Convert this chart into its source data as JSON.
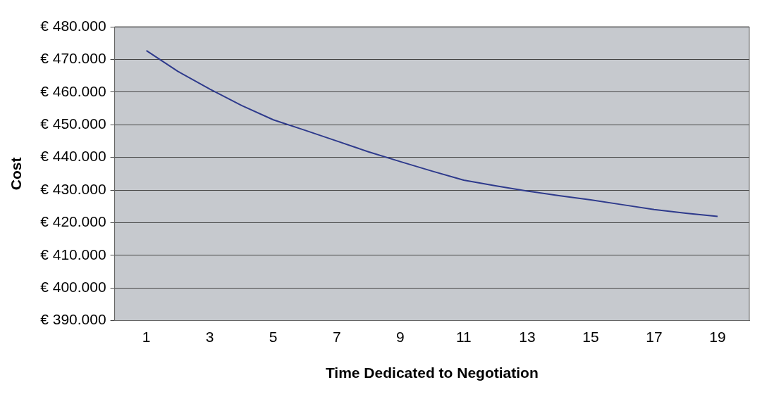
{
  "chart_data": {
    "type": "line",
    "xlabel": "Time Dedicated to Negotiation",
    "ylabel": "Cost",
    "x": [
      1,
      2,
      3,
      4,
      5,
      6,
      7,
      8,
      9,
      10,
      11,
      12,
      13,
      14,
      15,
      16,
      17,
      18,
      19
    ],
    "series": [
      {
        "color": "#2e3a8c",
        "values": [
          472700,
          466300,
          460900,
          455900,
          451500,
          448300,
          445000,
          441700,
          438700,
          435800,
          433000,
          431300,
          429700,
          428300,
          427000,
          425500,
          424000,
          422900,
          421900
        ]
      }
    ],
    "xlim": [
      0,
      20
    ],
    "xticks": [
      1,
      3,
      5,
      7,
      9,
      11,
      13,
      15,
      17,
      19
    ],
    "ylim": [
      390000,
      480000
    ],
    "yticks": [
      {
        "value": 390000,
        "label": "€ 390.000"
      },
      {
        "value": 400000,
        "label": "€ 400.000"
      },
      {
        "value": 410000,
        "label": "€ 410.000"
      },
      {
        "value": 420000,
        "label": "€ 420.000"
      },
      {
        "value": 430000,
        "label": "€ 430.000"
      },
      {
        "value": 440000,
        "label": "€ 440.000"
      },
      {
        "value": 450000,
        "label": "€ 450.000"
      },
      {
        "value": 460000,
        "label": "€ 460.000"
      },
      {
        "value": 470000,
        "label": "€ 470.000"
      },
      {
        "value": 480000,
        "label": "€ 480.000"
      }
    ],
    "grid": "y",
    "legend": false,
    "marker": "none",
    "line_style": "solid"
  }
}
